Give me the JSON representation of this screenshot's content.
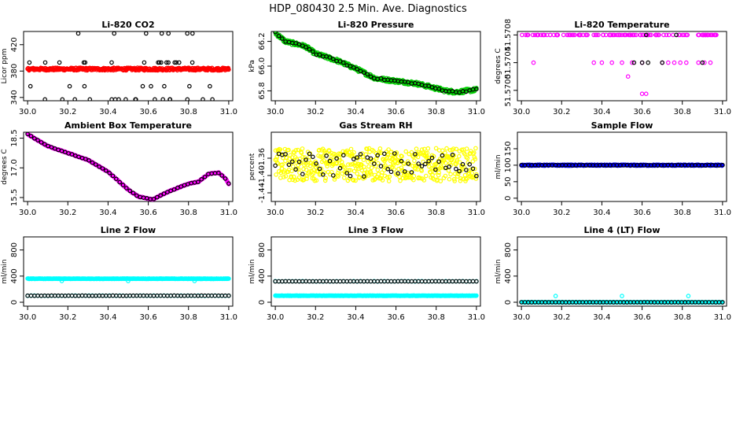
{
  "figure": {
    "title": "HDP_080430  2.5 Min. Ave. Diagnostics"
  },
  "colors": {
    "black": "#000000",
    "red": "#ff0000",
    "green": "#00cc00",
    "magenta": "#ff00ff",
    "yellow": "#ffff00",
    "blue": "#0000ff",
    "cyan": "#00ffff"
  },
  "chart_data": [
    {
      "type": "scatter",
      "title": "Li-820 CO2",
      "ylabel": "Licor ppm",
      "xlim": [
        29.98,
        31.02
      ],
      "ylim": [
        335,
        440
      ],
      "xticks": [
        30.0,
        30.2,
        30.4,
        30.6,
        30.8,
        31.0
      ],
      "xtick_labels": [
        "30.0",
        "30.2",
        "30.4",
        "30.6",
        "30.8",
        "31.0"
      ],
      "yticks": [
        340,
        380,
        420
      ],
      "ytick_labels": [
        "340",
        "380",
        "420"
      ],
      "series": [
        {
          "name": "black",
          "color": "black",
          "style": "sparse",
          "x0": 30.0,
          "x1": 31.0,
          "n": 60,
          "levels": [
            437,
            393,
            383,
            357,
            337
          ]
        },
        {
          "name": "red",
          "color": "red",
          "style": "dense",
          "x0": 30.0,
          "x1": 31.0,
          "n": 400,
          "y0": 383,
          "y1": 383,
          "noise": 2
        }
      ]
    },
    {
      "type": "scatter",
      "title": "Li-820 Pressure",
      "ylabel": "kPa",
      "xlim": [
        29.98,
        31.02
      ],
      "ylim": [
        65.72,
        66.28
      ],
      "xticks": [
        30.0,
        30.2,
        30.4,
        30.6,
        30.8,
        31.0
      ],
      "xtick_labels": [
        "30.0",
        "30.2",
        "30.4",
        "30.6",
        "30.8",
        "31.0"
      ],
      "yticks": [
        65.8,
        66.0,
        66.2
      ],
      "ytick_labels": [
        "65.8",
        "66.0",
        "66.2"
      ],
      "series": [
        {
          "name": "green",
          "color": "green",
          "style": "curve",
          "n": 400,
          "noise": 0.015,
          "knots": [
            [
              30.0,
              66.27
            ],
            [
              30.05,
              66.2
            ],
            [
              30.15,
              66.16
            ],
            [
              30.2,
              66.1
            ],
            [
              30.3,
              66.05
            ],
            [
              30.4,
              65.98
            ],
            [
              30.5,
              65.9
            ],
            [
              30.6,
              65.88
            ],
            [
              30.7,
              65.86
            ],
            [
              30.8,
              65.82
            ],
            [
              30.85,
              65.8
            ],
            [
              30.9,
              65.79
            ],
            [
              30.95,
              65.8
            ],
            [
              31.0,
              65.81
            ]
          ]
        },
        {
          "name": "black",
          "color": "black",
          "style": "curve",
          "n": 60,
          "noise": 0.006,
          "knots": [
            [
              30.0,
              66.27
            ],
            [
              30.05,
              66.2
            ],
            [
              30.15,
              66.16
            ],
            [
              30.2,
              66.1
            ],
            [
              30.3,
              66.05
            ],
            [
              30.4,
              65.98
            ],
            [
              30.5,
              65.9
            ],
            [
              30.6,
              65.88
            ],
            [
              30.7,
              65.86
            ],
            [
              30.8,
              65.82
            ],
            [
              30.85,
              65.8
            ],
            [
              30.9,
              65.79
            ],
            [
              30.95,
              65.8
            ],
            [
              31.0,
              65.81
            ]
          ]
        }
      ]
    },
    {
      "type": "scatter",
      "title": "Li-820 Temperature",
      "ylabel": "degrees C",
      "xlim": [
        29.98,
        31.02
      ],
      "ylim": [
        51.56985,
        51.57085
      ],
      "xticks": [
        30.0,
        30.2,
        30.4,
        30.6,
        30.8,
        31.0
      ],
      "xtick_labels": [
        "30.0",
        "30.2",
        "30.4",
        "30.6",
        "30.8",
        "31.0"
      ],
      "yticks": [
        51.57,
        51.5704,
        51.5708
      ],
      "ytick_labels": [
        "51.5700",
        "51.5704",
        "51.5708"
      ],
      "series": [
        {
          "name": "magenta",
          "color": "magenta",
          "style": "sparse",
          "x0": 30.0,
          "x1": 31.0,
          "n": 120,
          "levels": [
            51.5708
          ]
        },
        {
          "name": "magenta-mid",
          "color": "magenta",
          "style": "list",
          "points": [
            [
              30.06,
              51.5704
            ],
            [
              30.36,
              51.5704
            ],
            [
              30.4,
              51.5704
            ],
            [
              30.45,
              51.5704
            ],
            [
              30.5,
              51.5704
            ],
            [
              30.55,
              51.5704
            ],
            [
              30.6,
              51.5704
            ],
            [
              30.7,
              51.5704
            ],
            [
              30.73,
              51.5704
            ],
            [
              30.76,
              51.5704
            ],
            [
              30.79,
              51.5704
            ],
            [
              30.82,
              51.5704
            ],
            [
              30.88,
              51.5704
            ],
            [
              30.91,
              51.5704
            ],
            [
              30.94,
              51.5704
            ],
            [
              30.53,
              51.5702
            ],
            [
              30.6,
              51.56995
            ],
            [
              30.62,
              51.56995
            ]
          ]
        },
        {
          "name": "black",
          "color": "black",
          "style": "list",
          "points": [
            [
              30.56,
              51.5704
            ],
            [
              30.6,
              51.5704
            ],
            [
              30.63,
              51.5704
            ],
            [
              30.7,
              51.5704
            ],
            [
              30.9,
              51.5704
            ],
            [
              30.62,
              51.5708
            ],
            [
              30.77,
              51.5708
            ]
          ]
        }
      ]
    },
    {
      "type": "scatter",
      "title": "Ambient Box Temperature",
      "ylabel": "degrees C",
      "xlim": [
        29.98,
        31.02
      ],
      "ylim": [
        15.3,
        18.8
      ],
      "xticks": [
        30.0,
        30.2,
        30.4,
        30.6,
        30.8,
        31.0
      ],
      "xtick_labels": [
        "30.0",
        "30.2",
        "30.4",
        "30.6",
        "30.8",
        "31.0"
      ],
      "yticks": [
        15.5,
        17.0,
        18.5
      ],
      "ytick_labels": [
        "15.5",
        "17.0",
        "18.5"
      ],
      "series": [
        {
          "name": "magenta",
          "color": "magenta",
          "style": "curve",
          "n": 400,
          "noise": 0.02,
          "knots": [
            [
              30.0,
              18.7
            ],
            [
              30.1,
              18.1
            ],
            [
              30.2,
              17.75
            ],
            [
              30.3,
              17.4
            ],
            [
              30.4,
              16.8
            ],
            [
              30.5,
              15.9
            ],
            [
              30.55,
              15.55
            ],
            [
              30.62,
              15.4
            ],
            [
              30.7,
              15.8
            ],
            [
              30.8,
              16.2
            ],
            [
              30.85,
              16.3
            ],
            [
              30.9,
              16.7
            ],
            [
              30.95,
              16.75
            ],
            [
              30.98,
              16.5
            ],
            [
              31.0,
              16.2
            ]
          ]
        },
        {
          "name": "black",
          "color": "black",
          "style": "curve",
          "n": 60,
          "noise": 0.01,
          "knots": [
            [
              30.0,
              18.7
            ],
            [
              30.1,
              18.1
            ],
            [
              30.2,
              17.75
            ],
            [
              30.3,
              17.4
            ],
            [
              30.4,
              16.8
            ],
            [
              30.5,
              15.9
            ],
            [
              30.55,
              15.55
            ],
            [
              30.62,
              15.4
            ],
            [
              30.7,
              15.8
            ],
            [
              30.8,
              16.2
            ],
            [
              30.85,
              16.3
            ],
            [
              30.9,
              16.7
            ],
            [
              30.95,
              16.75
            ],
            [
              30.98,
              16.5
            ],
            [
              31.0,
              16.2
            ]
          ]
        }
      ]
    },
    {
      "type": "scatter",
      "title": "Gas Stream RH",
      "ylabel": "percent",
      "xlim": [
        29.98,
        31.02
      ],
      "ylim": [
        -1.46,
        -1.3
      ],
      "xticks": [
        30.0,
        30.2,
        30.4,
        30.6,
        30.8,
        31.0
      ],
      "xtick_labels": [
        "30.0",
        "30.2",
        "30.4",
        "30.6",
        "30.8",
        "31.0"
      ],
      "yticks": [
        -1.44,
        -1.4,
        -1.36
      ],
      "ytick_labels": [
        "-1.44",
        "-1.40",
        "-1.36"
      ],
      "series": [
        {
          "name": "yellow",
          "color": "yellow",
          "style": "dense",
          "x0": 30.0,
          "x1": 31.0,
          "n": 500,
          "y0": -1.375,
          "y1": -1.375,
          "noise": 0.038
        },
        {
          "name": "black",
          "color": "black",
          "style": "dense",
          "x0": 30.0,
          "x1": 31.0,
          "n": 60,
          "y0": -1.375,
          "y1": -1.375,
          "noise": 0.028
        }
      ]
    },
    {
      "type": "scatter",
      "title": "Sample Flow",
      "ylabel": "ml/min",
      "xlim": [
        29.98,
        31.02
      ],
      "ylim": [
        -10,
        200
      ],
      "xticks": [
        30.0,
        30.2,
        30.4,
        30.6,
        30.8,
        31.0
      ],
      "xtick_labels": [
        "30.0",
        "30.2",
        "30.4",
        "30.6",
        "30.8",
        "31.0"
      ],
      "yticks": [
        0,
        50,
        100,
        150
      ],
      "ytick_labels": [
        "0",
        "50",
        "100",
        "150"
      ],
      "series": [
        {
          "name": "blue",
          "color": "blue",
          "style": "dense",
          "x0": 30.0,
          "x1": 31.0,
          "n": 400,
          "y0": 100,
          "y1": 100,
          "noise": 1.5
        },
        {
          "name": "black",
          "color": "black",
          "style": "dense",
          "x0": 30.0,
          "x1": 31.0,
          "n": 60,
          "y0": 100,
          "y1": 100,
          "noise": 0.5
        }
      ]
    },
    {
      "type": "scatter",
      "title": "Line 2 Flow",
      "ylabel": "ml/min",
      "xlim": [
        29.98,
        31.02
      ],
      "ylim": [
        -60,
        1000
      ],
      "xticks": [
        30.0,
        30.2,
        30.4,
        30.6,
        30.8,
        31.0
      ],
      "xtick_labels": [
        "30.0",
        "30.2",
        "30.4",
        "30.6",
        "30.8",
        "31.0"
      ],
      "yticks": [
        0,
        400,
        800
      ],
      "ytick_labels": [
        "0",
        "400",
        "800"
      ],
      "series": [
        {
          "name": "cyan-high",
          "color": "cyan",
          "style": "dense",
          "x0": 30.0,
          "x1": 31.0,
          "n": 400,
          "y0": 360,
          "y1": 360,
          "noise": 3
        },
        {
          "name": "cyan-low",
          "color": "cyan",
          "style": "dense",
          "x0": 30.0,
          "x1": 31.0,
          "n": 60,
          "y0": 100,
          "y1": 100,
          "noise": 2
        },
        {
          "name": "black",
          "color": "black",
          "style": "dense",
          "x0": 30.0,
          "x1": 31.0,
          "n": 60,
          "y0": 100,
          "y1": 100,
          "noise": 1
        },
        {
          "name": "cyan-dips",
          "color": "cyan",
          "style": "list",
          "points": [
            [
              30.17,
              325
            ],
            [
              30.5,
              325
            ],
            [
              30.83,
              325
            ]
          ]
        }
      ]
    },
    {
      "type": "scatter",
      "title": "Line 3 Flow",
      "ylabel": "ml/min",
      "xlim": [
        29.98,
        31.02
      ],
      "ylim": [
        -60,
        1000
      ],
      "xticks": [
        30.0,
        30.2,
        30.4,
        30.6,
        30.8,
        31.0
      ],
      "xtick_labels": [
        "30.0",
        "30.2",
        "30.4",
        "30.6",
        "30.8",
        "31.0"
      ],
      "yticks": [
        0,
        400,
        800
      ],
      "ytick_labels": [
        "0",
        "400",
        "800"
      ],
      "series": [
        {
          "name": "cyan-low",
          "color": "cyan",
          "style": "dense",
          "x0": 30.0,
          "x1": 31.0,
          "n": 400,
          "y0": 100,
          "y1": 100,
          "noise": 3
        },
        {
          "name": "cyan-high",
          "color": "cyan",
          "style": "dense",
          "x0": 30.0,
          "x1": 31.0,
          "n": 60,
          "y0": 320,
          "y1": 320,
          "noise": 2
        },
        {
          "name": "black",
          "color": "black",
          "style": "dense",
          "x0": 30.0,
          "x1": 31.0,
          "n": 60,
          "y0": 320,
          "y1": 320,
          "noise": 1
        }
      ]
    },
    {
      "type": "scatter",
      "title": "Line 4 (LT) Flow",
      "ylabel": "ml/min",
      "xlim": [
        29.98,
        31.02
      ],
      "ylim": [
        -60,
        1000
      ],
      "xticks": [
        30.0,
        30.2,
        30.4,
        30.6,
        30.8,
        31.0
      ],
      "xtick_labels": [
        "30.0",
        "30.2",
        "30.4",
        "30.6",
        "30.8",
        "31.0"
      ],
      "yticks": [
        0,
        400,
        800
      ],
      "ytick_labels": [
        "0",
        "400",
        "800"
      ],
      "series": [
        {
          "name": "cyan",
          "color": "cyan",
          "style": "dense",
          "x0": 30.0,
          "x1": 31.0,
          "n": 400,
          "y0": 0,
          "y1": 0,
          "noise": 2
        },
        {
          "name": "black",
          "color": "black",
          "style": "dense",
          "x0": 30.0,
          "x1": 31.0,
          "n": 60,
          "y0": 0,
          "y1": 0,
          "noise": 1
        },
        {
          "name": "cyan-spikes",
          "color": "cyan",
          "style": "list",
          "points": [
            [
              30.17,
              95
            ],
            [
              30.5,
              95
            ],
            [
              30.83,
              95
            ]
          ]
        }
      ]
    }
  ]
}
